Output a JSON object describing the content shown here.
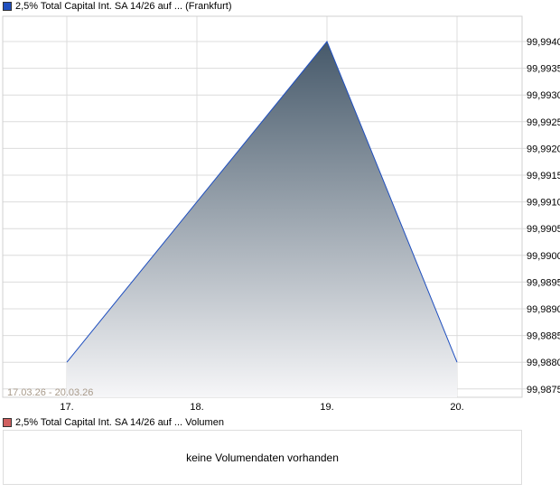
{
  "chart_data": {
    "type": "area",
    "title": "2,5% Total Capital Int. SA 14/26 auf ... (Frankfurt)",
    "x": [
      "17.",
      "18.",
      "19.",
      "20."
    ],
    "values": [
      99.988,
      99.991,
      99.994,
      99.988
    ],
    "ylim": [
      99.98735,
      99.99452
    ],
    "yticks": [
      "99,9875",
      "99,9880",
      "99,9885",
      "99,9890",
      "99,9895",
      "99,9900",
      "99,9905",
      "99,9910",
      "99,9915",
      "99,9920",
      "99,9925",
      "99,9930",
      "99,9935",
      "99,9940"
    ],
    "ytick_values": [
      99.9875,
      99.988,
      99.9885,
      99.989,
      99.9895,
      99.99,
      99.9905,
      99.991,
      99.9915,
      99.992,
      99.9925,
      99.993,
      99.9935,
      99.994
    ],
    "date_range": "17.03.26 - 20.03.26",
    "grid": true,
    "line_color": "#1f4fbf",
    "legend_color": "#1f4fbf"
  },
  "volume": {
    "title": "2,5% Total Capital Int. SA 14/26 auf ... Volumen",
    "legend_color": "#d06060",
    "message": "keine Volumendaten vorhanden"
  }
}
